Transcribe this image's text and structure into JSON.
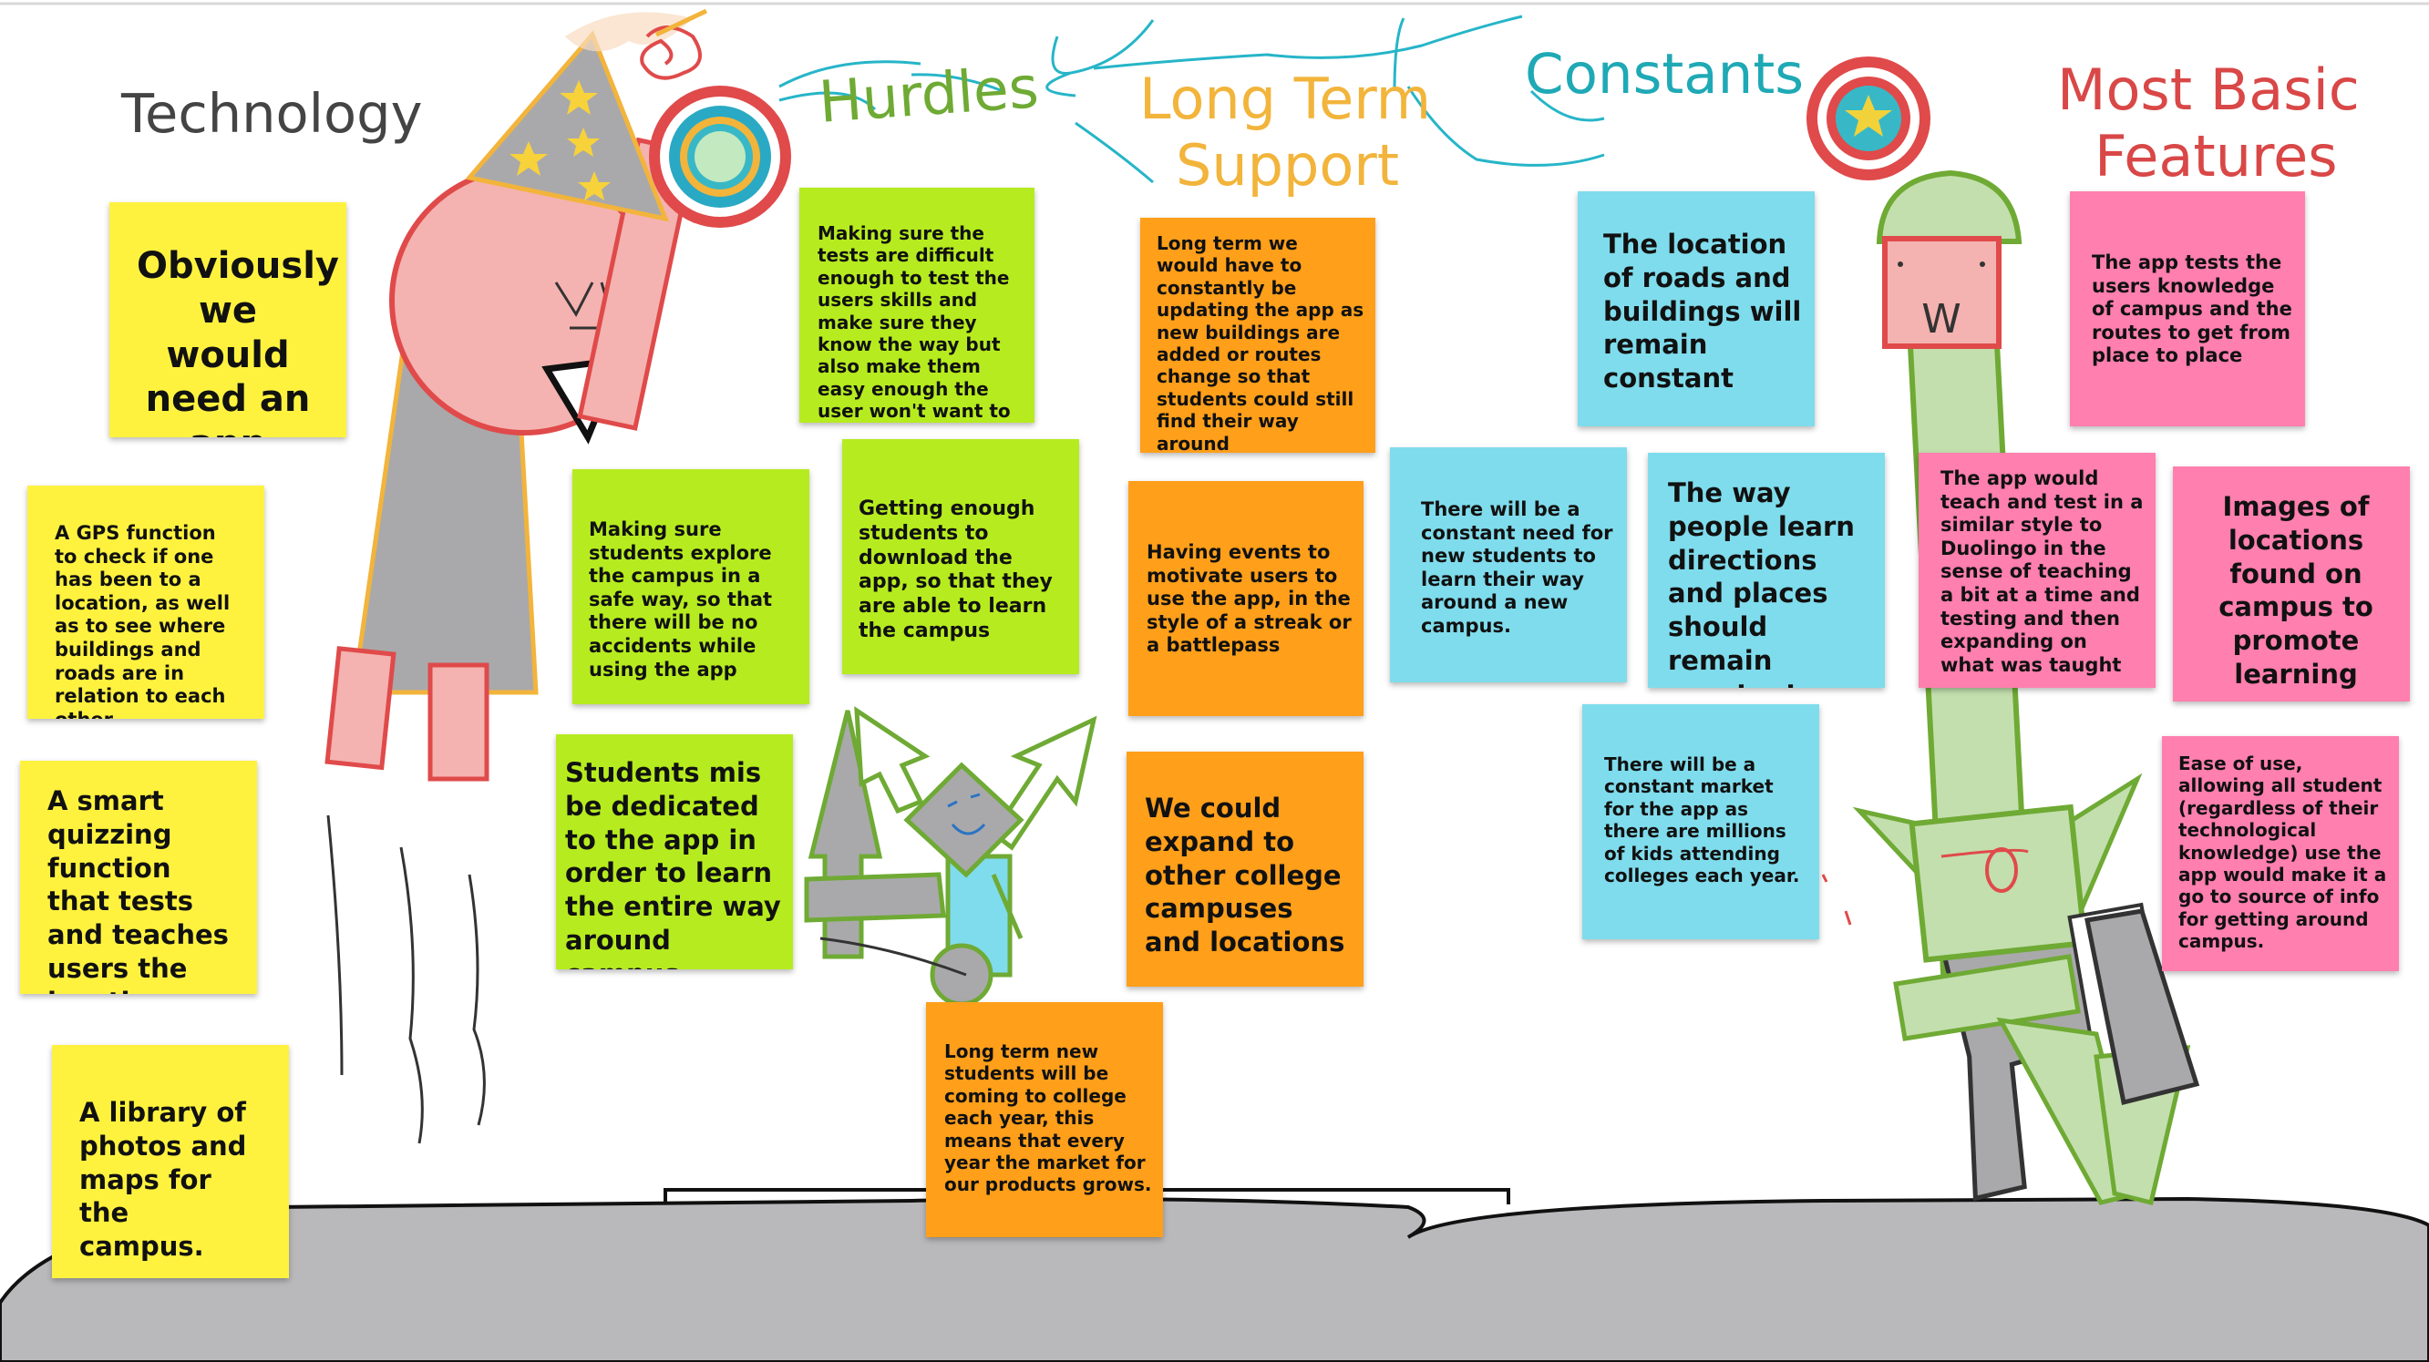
{
  "colors": {
    "yellow": "#fff23f",
    "green": "#b6ec1f",
    "orange": "#ff9f1a",
    "cyan": "#7fdcec",
    "pink": "#ff7fae",
    "heading_technology": "#444444",
    "heading_hurdles": "#6faa34",
    "heading_long_term": "#f2b43b",
    "heading_constants": "#1ea9b5",
    "heading_basic": "#d94747"
  },
  "headings": {
    "technology": "Technology",
    "hurdles": "Hurdles",
    "long_term_line1": "Long Term",
    "long_term_line2": "Support",
    "constants": "Constants",
    "basic_line1": "Most Basic",
    "basic_line2": "Features"
  },
  "notes": {
    "tech_app": "Obviously we would need an app",
    "tech_gps": "A GPS function to check if one has been to a location, as well as to see where buildings and roads are in relation to each other",
    "tech_quiz": "A smart quizzing function that tests and teaches users the locations.",
    "tech_library": "A library of photos and maps for the campus.",
    "hurdle_difficult": "Making sure the tests are difficult enough to test the users skills and make sure they know the way but also make them easy enough the user won't want to quit",
    "hurdle_safe": "Making sure students explore the campus in a safe way, so that there will be no accidents while using the app",
    "hurdle_downloads": "Getting enough students to download the app, so that they are able to learn the campus",
    "hurdle_dedicated": "Students mis be dedicated to the app in order to learn the entire way around campus",
    "lts_update": "Long term we would have to constantly be updating the app as new buildings are added or routes change so that students could still find their way around",
    "lts_events": "Having events to motivate users to use the app, in the style of a streak or a battlepass",
    "lts_expand": "We could expand to other college campuses and locations",
    "lts_new_students": "Long term new students will be coming to college each year, this means that every year the market for our products grows.",
    "const_roads": "The location of roads and buildings will remain constant",
    "const_need": "There will be a constant need for new students to learn their way around a new campus.",
    "const_learn": "The way people learn directions and places should remain constant",
    "const_market": "There will be a constant market for the app as there are millions of kids attending colleges each year.",
    "basic_tests": "The app tests the users knowledge of campus and the routes to get from place to place",
    "basic_duolingo": "The app would teach and test in a similar style to Duolingo in the sense of teaching a bit at a time and testing and then expanding on what was taught",
    "basic_images": "Images of locations found on campus to promote learning",
    "basic_ease": "Ease of use, allowing all student (regardless of their technological knowledge) use the app would make it a go to source of info for getting around campus."
  },
  "drawings": {
    "knight_face": "W"
  }
}
